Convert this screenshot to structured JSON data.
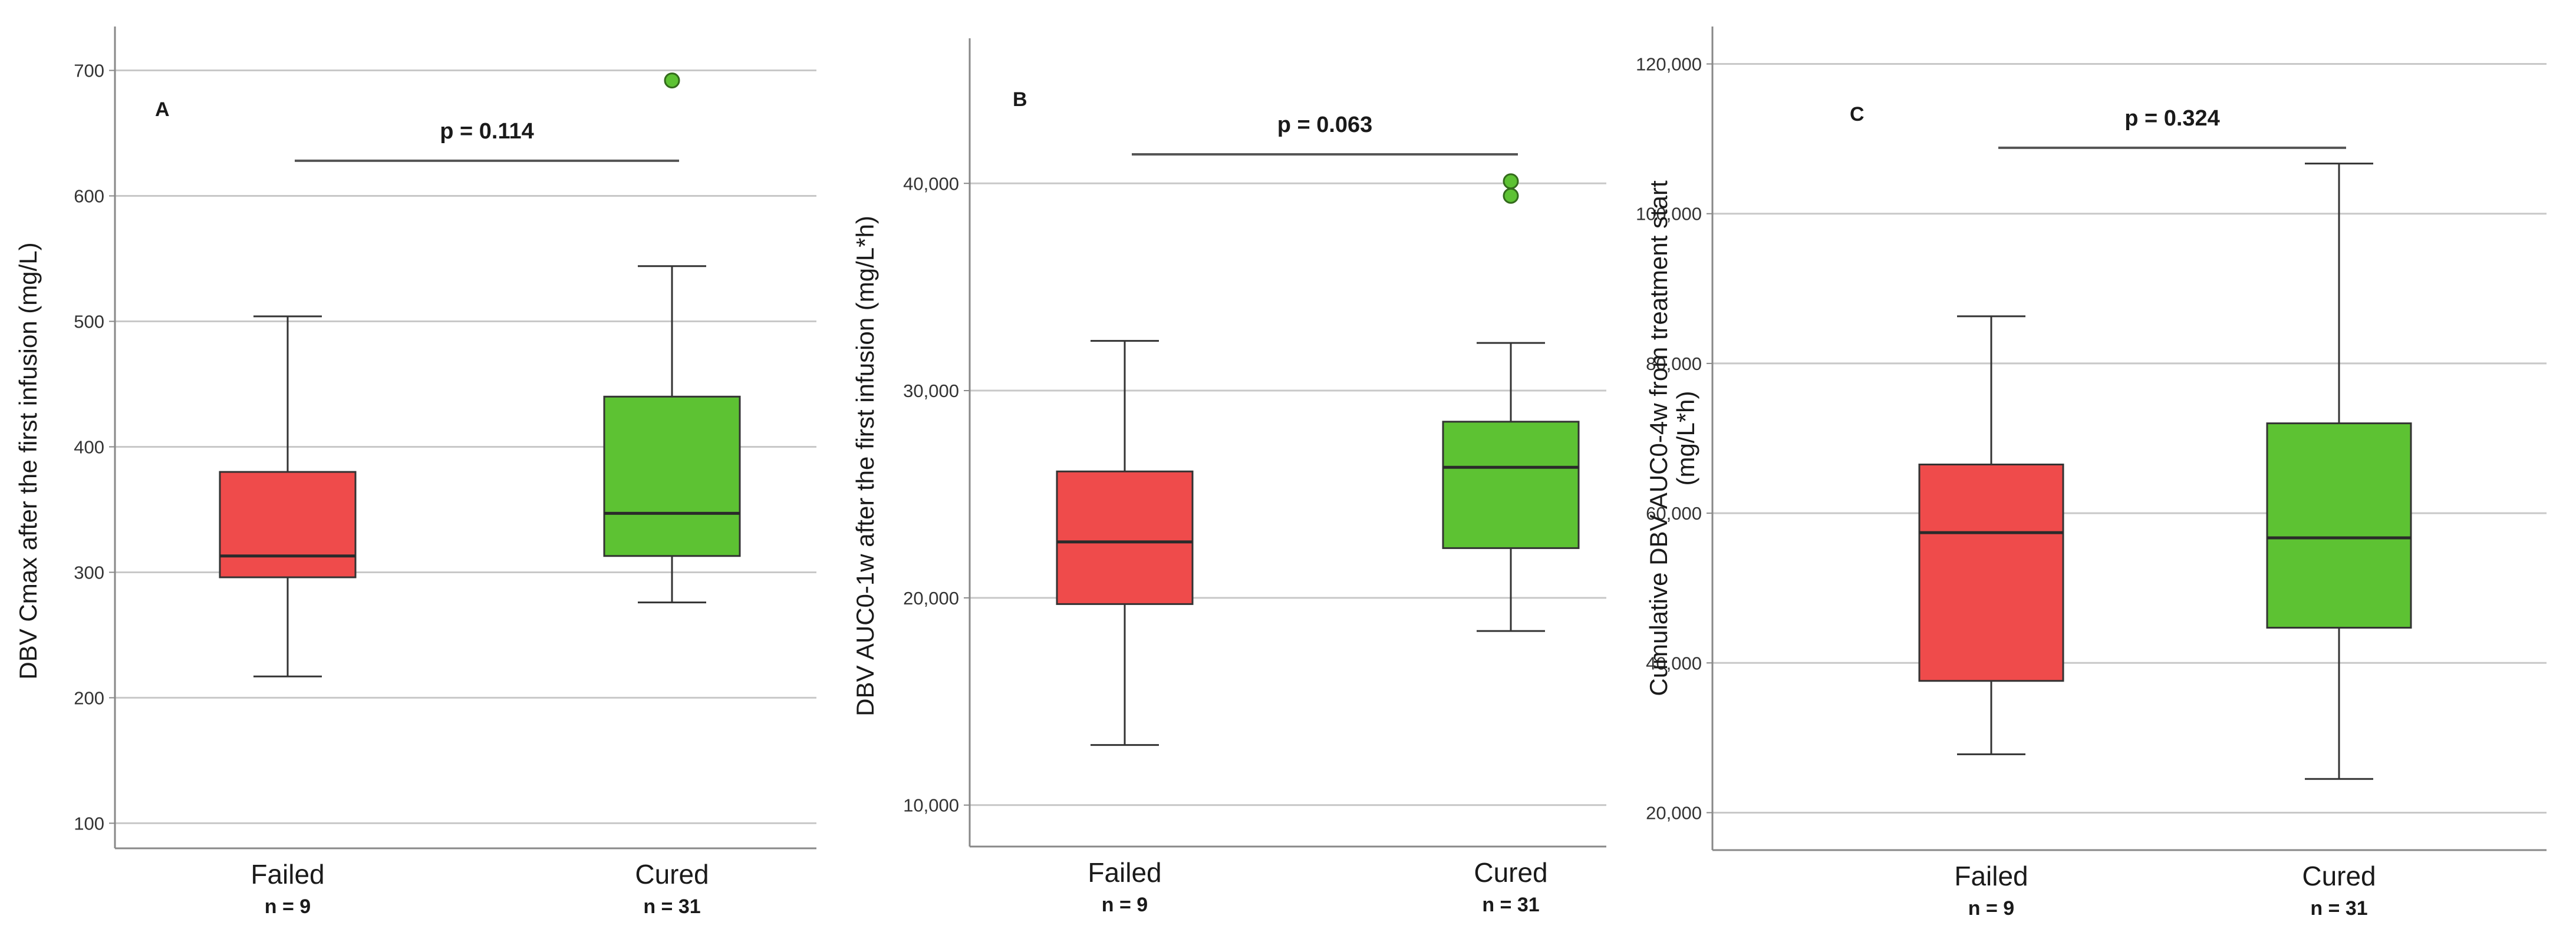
{
  "chart_data": [
    {
      "type": "box",
      "panel_label": "A",
      "ylabel": "DBV Cmax after the first infusion (mg/L)",
      "ylim": [
        80,
        735
      ],
      "yticks": [
        100,
        200,
        300,
        400,
        500,
        600,
        700
      ],
      "ytick_labels": [
        "100",
        "200",
        "300",
        "400",
        "500",
        "600",
        "700"
      ],
      "grid": true,
      "groups": [
        {
          "category": "Failed",
          "n_label": "n = 9",
          "color": "#ef4b4b",
          "whisker_low": 217,
          "q1": 296,
          "median": 313,
          "q3": 380,
          "whisker_high": 504,
          "outliers": []
        },
        {
          "category": "Cured",
          "n_label": "n = 31",
          "color": "#5dc233",
          "whisker_low": 276,
          "q1": 313,
          "median": 347,
          "q3": 440,
          "whisker_high": 544,
          "outliers": [
            692
          ]
        }
      ],
      "comparison": {
        "label": "p = 0.114",
        "y": 628
      }
    },
    {
      "type": "box",
      "panel_label": "B",
      "ylabel": "DBV AUC0-1w after the first infusion (mg/L*h)",
      "ylim": [
        8000,
        47000
      ],
      "yticks": [
        10000,
        20000,
        30000,
        40000
      ],
      "ytick_labels": [
        "10,000",
        "20,000",
        "30,000",
        "40,000"
      ],
      "grid": true,
      "groups": [
        {
          "category": "Failed",
          "n_label": "n = 9",
          "color": "#ef4b4b",
          "whisker_low": 12900,
          "q1": 19700,
          "median": 22700,
          "q3": 26100,
          "whisker_high": 32400,
          "outliers": []
        },
        {
          "category": "Cured",
          "n_label": "n = 31",
          "color": "#5dc233",
          "whisker_low": 18400,
          "q1": 22400,
          "median": 26300,
          "q3": 28500,
          "whisker_high": 32300,
          "outliers": [
            40100,
            39400
          ]
        }
      ],
      "comparison": {
        "label": "p = 0.063",
        "y": 41400
      }
    },
    {
      "type": "box",
      "panel_label": "C",
      "ylabel_lines": [
        "Cumulative DBV AUC0-4w from treatment start",
        "(mg/L*h)"
      ],
      "ylim": [
        15000,
        125000
      ],
      "yticks": [
        20000,
        40000,
        60000,
        80000,
        100000,
        120000
      ],
      "ytick_labels": [
        "20,000",
        "40,000",
        "60,000",
        "80,000",
        "100,000",
        "120,000"
      ],
      "grid": true,
      "groups": [
        {
          "category": "Failed",
          "n_label": "n = 9",
          "color": "#ef4b4b",
          "whisker_low": 27800,
          "q1": 37600,
          "median": 57400,
          "q3": 66500,
          "whisker_high": 86300,
          "outliers": []
        },
        {
          "category": "Cured",
          "n_label": "n = 31",
          "color": "#5dc233",
          "whisker_low": 24500,
          "q1": 44700,
          "median": 56700,
          "q3": 72000,
          "whisker_high": 106700,
          "outliers": []
        }
      ],
      "comparison": {
        "label": "p = 0.324",
        "y": 108800
      }
    }
  ]
}
